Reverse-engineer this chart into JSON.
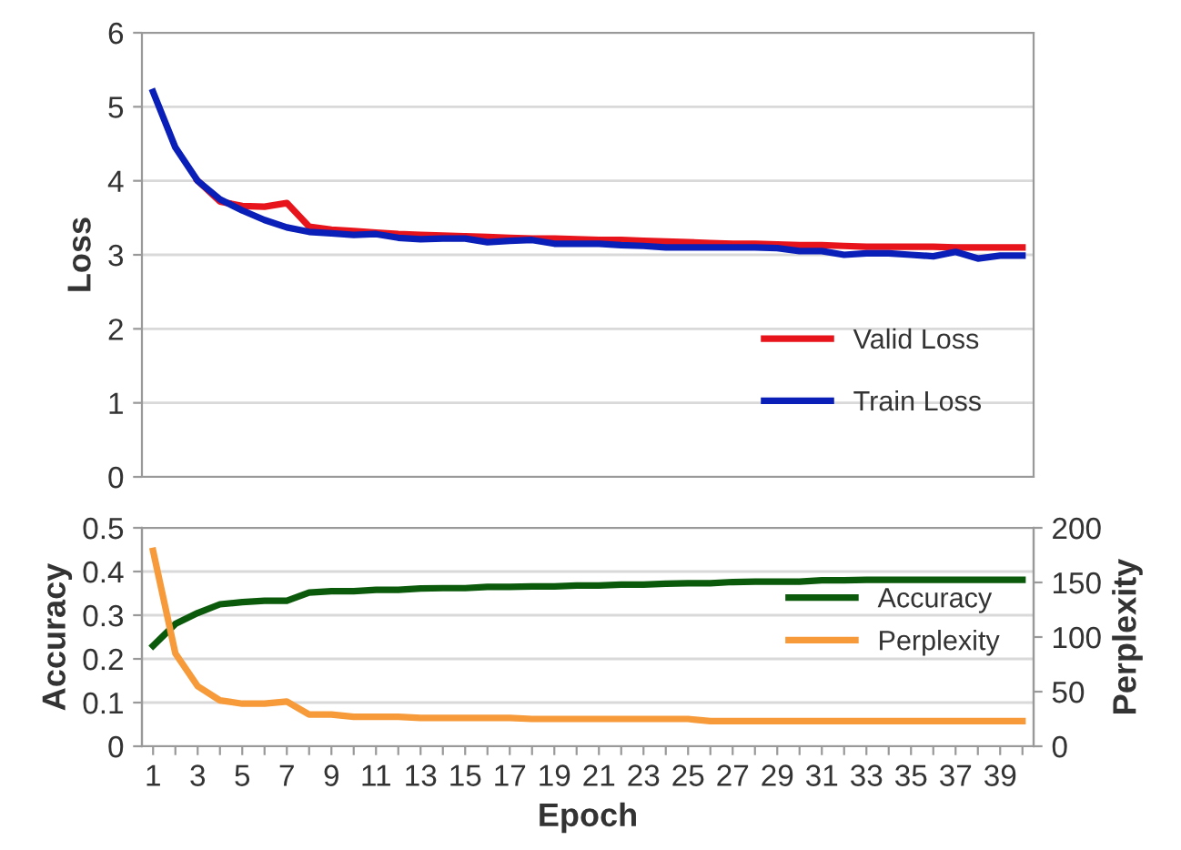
{
  "chart_data": [
    {
      "type": "line",
      "ylabel": "Loss",
      "categories": [
        "1",
        null,
        "3",
        null,
        "5",
        null,
        "7",
        null,
        "9",
        null,
        "11",
        null,
        "13",
        null,
        "15",
        null,
        "17",
        null,
        "19",
        null,
        "21",
        null,
        "23",
        null,
        "25",
        null,
        "27",
        null,
        "29",
        null,
        "31",
        null,
        "33",
        null,
        "35",
        null,
        "37",
        null,
        "39",
        null
      ],
      "ylim": [
        0,
        6
      ],
      "yticks": [
        0,
        1,
        2,
        3,
        4,
        5,
        6
      ],
      "grid": "y",
      "legend": "bottom right",
      "tick_labels": "y",
      "line_style": "solid",
      "series": [
        {
          "name": "Valid Loss",
          "color": "#e8141b",
          "values": [
            null,
            null,
            4.0,
            3.72,
            3.66,
            3.65,
            3.7,
            3.38,
            3.34,
            3.32,
            3.3,
            3.28,
            3.27,
            3.26,
            3.25,
            3.24,
            3.23,
            3.22,
            3.22,
            3.21,
            3.2,
            3.2,
            3.19,
            3.18,
            3.17,
            3.16,
            3.15,
            3.15,
            3.14,
            3.13,
            3.13,
            3.12,
            3.11,
            3.11,
            3.11,
            3.11,
            3.1,
            3.1,
            3.1,
            3.1
          ]
        },
        {
          "name": "Train Loss",
          "color": "#0a1fb8",
          "values": [
            5.2,
            4.45,
            4.0,
            3.75,
            3.6,
            3.47,
            3.37,
            3.31,
            3.29,
            3.27,
            3.28,
            3.23,
            3.21,
            3.22,
            3.22,
            3.17,
            3.19,
            3.2,
            3.15,
            3.15,
            3.15,
            3.13,
            3.12,
            3.1,
            3.1,
            3.1,
            3.1,
            3.1,
            3.09,
            3.05,
            3.05,
            3.0,
            3.02,
            3.02,
            3.0,
            2.98,
            3.04,
            2.95,
            2.99,
            2.99
          ]
        }
      ]
    },
    {
      "type": "line",
      "xlabel": "Epoch",
      "ylabel": "Accuracy",
      "y2label": "Perplexity",
      "categories": [
        "1",
        null,
        "3",
        null,
        "5",
        null,
        "7",
        null,
        "9",
        null,
        "11",
        null,
        "13",
        null,
        "15",
        null,
        "17",
        null,
        "19",
        null,
        "21",
        null,
        "23",
        null,
        "25",
        null,
        "27",
        null,
        "29",
        null,
        "31",
        null,
        "33",
        null,
        "35",
        null,
        "37",
        null,
        "39",
        null
      ],
      "ylim": [
        0,
        0.5
      ],
      "yticks": [
        0,
        {
          "value": 0.1,
          "label": "0.1"
        },
        {
          "value": 0.2,
          "label": "0.2"
        },
        {
          "value": 0.3,
          "label": "0.3"
        },
        {
          "value": 0.4,
          "label": "0.4"
        },
        {
          "value": 0.5,
          "label": "0.5"
        }
      ],
      "y2lim": [
        0,
        200
      ],
      "y2ticks": [
        0,
        50,
        100,
        150,
        200
      ],
      "grid": "y",
      "legend": "right",
      "line_style": "solid",
      "series": [
        {
          "name": "Accuracy",
          "color": "#0b5a0b",
          "values": [
            0.23,
            0.28,
            0.305,
            0.325,
            0.33,
            0.333,
            0.333,
            0.352,
            0.355,
            0.355,
            0.358,
            0.358,
            0.361,
            0.362,
            0.362,
            0.365,
            0.365,
            0.366,
            0.366,
            0.368,
            0.368,
            0.37,
            0.37,
            0.372,
            0.373,
            0.373,
            0.376,
            0.377,
            0.377,
            0.377,
            0.38,
            0.38,
            0.381,
            0.381,
            0.381,
            0.381,
            0.381,
            0.381,
            0.381,
            0.381
          ]
        },
        {
          "name": "Perplexity",
          "color": "#f79a3a",
          "axis": "y2",
          "values": [
            179,
            85,
            55,
            42,
            39,
            39,
            41,
            29,
            29,
            27,
            27,
            27,
            26,
            26,
            26,
            26,
            26,
            25,
            25,
            25,
            25,
            25,
            25,
            25,
            25,
            23,
            23,
            23,
            23,
            23,
            23,
            23,
            23,
            23,
            23,
            23,
            23,
            23,
            23,
            23
          ]
        }
      ]
    }
  ]
}
